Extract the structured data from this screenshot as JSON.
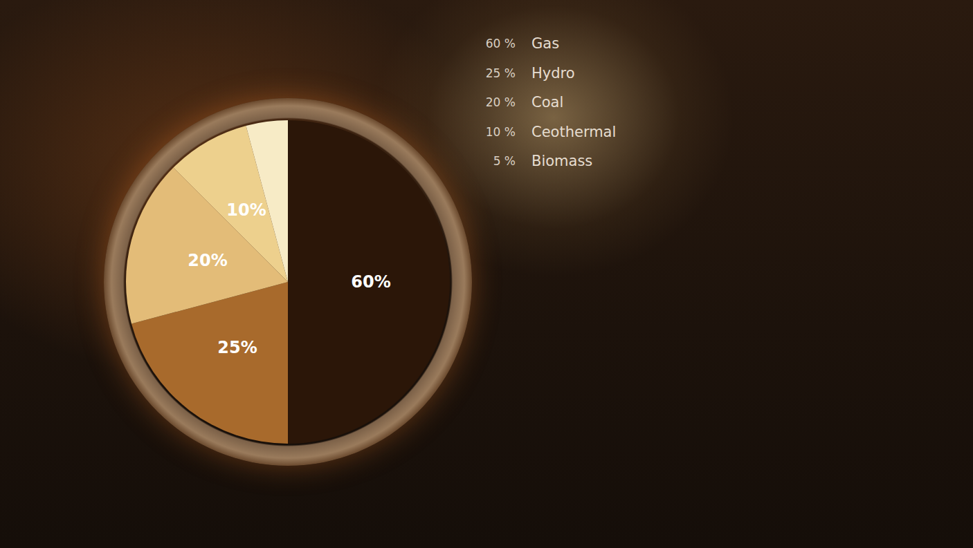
{
  "chart_data": {
    "type": "pie",
    "categories": [
      "Gas",
      "Hydro",
      "Coal",
      "Ceothermal",
      "Biomass"
    ],
    "values": [
      60,
      25,
      20,
      10,
      5
    ],
    "value_labels": [
      "60%",
      "25%",
      "20%",
      "10%",
      null
    ],
    "legend_values": [
      "60 %",
      "25 %",
      "20 %",
      "10 %",
      "5 %"
    ],
    "colors": [
      "#2b1608",
      "#a86a2c",
      "#e3bc78",
      "#edd08d",
      "#f7ebc6"
    ],
    "data_labels": true,
    "legend": "right"
  }
}
